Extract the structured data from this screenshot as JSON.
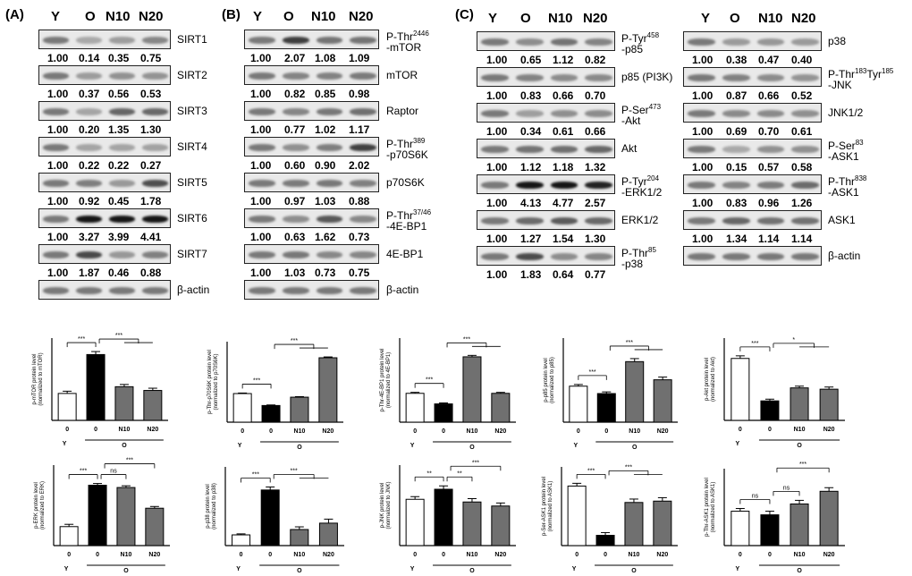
{
  "panels": {
    "a": "(A)",
    "b": "(B)",
    "c": "(C)"
  },
  "lanes": [
    "Y",
    "O",
    "N10",
    "N20"
  ],
  "blotsA": [
    {
      "label": "SIRT1",
      "values": [
        "1.00",
        "0.14",
        "0.35",
        "0.75"
      ]
    },
    {
      "label": "SIRT2",
      "values": [
        "1.00",
        "0.37",
        "0.56",
        "0.53"
      ]
    },
    {
      "label": "SIRT3",
      "values": [
        "1.00",
        "0.20",
        "1.35",
        "1.30"
      ]
    },
    {
      "label": "SIRT4",
      "values": [
        "1.00",
        "0.22",
        "0.22",
        "0.27"
      ]
    },
    {
      "label": "SIRT5",
      "values": [
        "1.00",
        "0.92",
        "0.45",
        "1.78"
      ]
    },
    {
      "label": "SIRT6",
      "values": [
        "1.00",
        "3.27",
        "3.99",
        "4.41"
      ]
    },
    {
      "label": "SIRT7",
      "values": [
        "1.00",
        "1.87",
        "0.46",
        "0.88"
      ]
    },
    {
      "label": "β-actin",
      "values": []
    }
  ],
  "blotsB": [
    {
      "label": "P-Thr",
      "sup": "2446",
      "label2": "-mTOR",
      "values": [
        "1.00",
        "2.07",
        "1.08",
        "1.09"
      ]
    },
    {
      "label": "mTOR",
      "values": [
        "1.00",
        "0.82",
        "0.85",
        "0.98"
      ]
    },
    {
      "label": "Raptor",
      "values": [
        "1.00",
        "0.77",
        "1.02",
        "1.17"
      ]
    },
    {
      "label": "P-Thr",
      "sup": "389",
      "label2": "-p70S6K",
      "values": [
        "1.00",
        "0.60",
        "0.90",
        "2.02"
      ]
    },
    {
      "label": "p70S6K",
      "values": [
        "1.00",
        "0.97",
        "1.03",
        "0.88"
      ]
    },
    {
      "label": "P-Thr",
      "sup": "37/46",
      "label2": "-4E-BP1",
      "values": [
        "1.00",
        "0.63",
        "1.62",
        "0.73"
      ]
    },
    {
      "label": "4E-BP1",
      "values": [
        "1.00",
        "1.03",
        "0.73",
        "0.75"
      ]
    },
    {
      "label": "β-actin",
      "values": []
    }
  ],
  "blotsC1": [
    {
      "label": "P-Tyr",
      "sup": "458",
      "label2": "-p85",
      "values": [
        "1.00",
        "0.65",
        "1.12",
        "0.82"
      ]
    },
    {
      "label": "p85 (PI3K)",
      "values": [
        "1.00",
        "0.83",
        "0.66",
        "0.70"
      ]
    },
    {
      "label": "P-Ser",
      "sup": "473",
      "label2": "-Akt",
      "values": [
        "1.00",
        "0.34",
        "0.61",
        "0.66"
      ]
    },
    {
      "label": "Akt",
      "values": [
        "1.00",
        "1.12",
        "1.18",
        "1.32"
      ]
    },
    {
      "label": "P-Tyr",
      "sup": "204",
      "label2": "-ERK1/2",
      "values": [
        "1.00",
        "4.13",
        "4.77",
        "2.57"
      ]
    },
    {
      "label": "ERK1/2",
      "values": [
        "1.00",
        "1.27",
        "1.54",
        "1.30"
      ]
    },
    {
      "label": "P-Thr",
      "sup": "85",
      "label2": "-p38",
      "values": [
        "1.00",
        "1.83",
        "0.64",
        "0.77"
      ]
    }
  ],
  "blotsC2": [
    {
      "label": "p38",
      "values": [
        "1.00",
        "0.38",
        "0.47",
        "0.40"
      ]
    },
    {
      "label": "P-Thr",
      "sup": "183",
      "mid": "Tyr",
      "sup2": "185",
      "label2": "-JNK",
      "values": [
        "1.00",
        "0.87",
        "0.66",
        "0.52"
      ]
    },
    {
      "label": "JNK1/2",
      "values": [
        "1.00",
        "0.69",
        "0.70",
        "0.61"
      ]
    },
    {
      "label": "P-Ser",
      "sup": "83",
      "label2": "-ASK1",
      "values": [
        "1.00",
        "0.15",
        "0.57",
        "0.58"
      ]
    },
    {
      "label": "P-Thr",
      "sup": "838",
      "label2": "-ASK1",
      "values": [
        "1.00",
        "0.83",
        "0.96",
        "1.26"
      ]
    },
    {
      "label": "ASK1",
      "values": [
        "1.00",
        "1.34",
        "1.14",
        "1.14"
      ]
    },
    {
      "label": "β-actin",
      "values": []
    }
  ],
  "chart_data": [
    {
      "type": "bar",
      "ylabel": "p-mTOR protein level (normalized to mTOR)",
      "categories": [
        "0",
        "0",
        "N10",
        "N20"
      ],
      "groups": [
        "Y",
        "O"
      ],
      "values": [
        0.36,
        0.88,
        0.45,
        0.4
      ],
      "errors": [
        0.03,
        0.04,
        0.03,
        0.03
      ],
      "ylim": [
        0,
        1.1
      ],
      "sig": [
        {
          "label": "***"
        },
        {
          "label": "***"
        }
      ]
    },
    {
      "type": "bar",
      "ylabel": "p-Thr-p70S6K protein level (normalized to p70S6K)",
      "categories": [
        "0",
        "0",
        "N10",
        "N20"
      ],
      "groups": [
        "Y",
        "O"
      ],
      "values": [
        1.03,
        0.6,
        0.9,
        2.32
      ],
      "errors": [
        0.02,
        0.02,
        0.02,
        0.03
      ],
      "ylim": [
        0,
        2.9
      ],
      "sig": [
        {
          "label": "***"
        },
        {
          "label": "***"
        }
      ]
    },
    {
      "type": "bar",
      "ylabel": "p-Thr-4E-BP1 protein level (normalized to 4E-BP1)",
      "categories": [
        "0",
        "0",
        "N10",
        "N20"
      ],
      "groups": [
        "Y",
        "O"
      ],
      "values": [
        0.6,
        0.38,
        1.36,
        0.6
      ],
      "errors": [
        0.02,
        0.02,
        0.03,
        0.02
      ],
      "ylim": [
        0,
        1.75
      ],
      "sig": [
        {
          "label": "***"
        },
        {
          "label": "***"
        }
      ]
    },
    {
      "type": "bar",
      "ylabel": "p-p85 protein level (normalized to p85)",
      "categories": [
        "0",
        "0",
        "N10",
        "N20"
      ],
      "groups": [
        "Y",
        "O"
      ],
      "values": [
        1.07,
        0.85,
        1.8,
        1.26
      ],
      "errors": [
        0.05,
        0.05,
        0.09,
        0.08
      ],
      "ylim": [
        0,
        2.5
      ],
      "sig": [
        {
          "label": "***"
        },
        {
          "label": "***"
        }
      ]
    },
    {
      "type": "bar",
      "ylabel": "p-Akt protein level (normalized to Akt)",
      "categories": [
        "0",
        "0",
        "N10",
        "N20"
      ],
      "groups": [
        "Y",
        "O"
      ],
      "values": [
        1.43,
        0.45,
        0.75,
        0.72
      ],
      "errors": [
        0.06,
        0.04,
        0.04,
        0.05
      ],
      "ylim": [
        0,
        1.9
      ],
      "sig": [
        {
          "label": "***"
        },
        {
          "label": "*"
        }
      ]
    },
    {
      "type": "bar",
      "ylabel": "p-ERK protein level (normalized to ERK)",
      "categories": [
        "0",
        "0",
        "N10",
        "N20"
      ],
      "groups": [
        "Y",
        "O"
      ],
      "values": [
        0.33,
        1.05,
        1.01,
        0.65
      ],
      "errors": [
        0.04,
        0.03,
        0.03,
        0.03
      ],
      "ylim": [
        0,
        1.4
      ],
      "sig": [
        {
          "label": "***"
        },
        {
          "label": "ns"
        },
        {
          "label": "***"
        }
      ]
    },
    {
      "type": "bar",
      "ylabel": "p-p38 protein level (normalized to p38)",
      "categories": [
        "0",
        "0",
        "N10",
        "N20"
      ],
      "groups": [
        "Y",
        "O"
      ],
      "values": [
        0.32,
        1.66,
        0.48,
        0.67
      ],
      "errors": [
        0.03,
        0.09,
        0.08,
        0.12
      ],
      "ylim": [
        0,
        2.35
      ],
      "sig": [
        {
          "label": "***"
        },
        {
          "label": "***"
        }
      ]
    },
    {
      "type": "bar",
      "ylabel": "p-JNK protein level (normalized to JNK)",
      "categories": [
        "0",
        "0",
        "N10",
        "N20"
      ],
      "groups": [
        "Y",
        "O"
      ],
      "values": [
        1.38,
        1.68,
        1.3,
        1.18
      ],
      "errors": [
        0.08,
        0.1,
        0.1,
        0.09
      ],
      "ylim": [
        0,
        2.4
      ],
      "sig": [
        {
          "label": "**"
        },
        {
          "label": "**"
        },
        {
          "label": "***"
        }
      ]
    },
    {
      "type": "bar",
      "ylabel": "p-Ser-ASK1 protein level (normalized to ASK1)",
      "categories": [
        "0",
        "0",
        "N10",
        "N20"
      ],
      "groups": [
        "Y",
        "O"
      ],
      "values": [
        0.87,
        0.15,
        0.63,
        0.65
      ],
      "errors": [
        0.04,
        0.04,
        0.05,
        0.05
      ],
      "ylim": [
        0,
        1.15
      ],
      "sig": [
        {
          "label": "***"
        },
        {
          "label": "***"
        }
      ]
    },
    {
      "type": "bar",
      "ylabel": "p-Thr-ASK1 protein level (normalized to ASK1)",
      "categories": [
        "0",
        "0",
        "N10",
        "N20"
      ],
      "groups": [
        "Y",
        "O"
      ],
      "values": [
        0.38,
        0.34,
        0.46,
        0.6
      ],
      "errors": [
        0.03,
        0.04,
        0.04,
        0.04
      ],
      "ylim": [
        0,
        0.85
      ],
      "sig": [
        {
          "label": "ns"
        },
        {
          "label": "ns"
        },
        {
          "label": "***"
        }
      ]
    }
  ],
  "colors": {
    "Y": "#ffffff",
    "O0": "#000000",
    "N10": "#707070",
    "N20": "#707070"
  }
}
